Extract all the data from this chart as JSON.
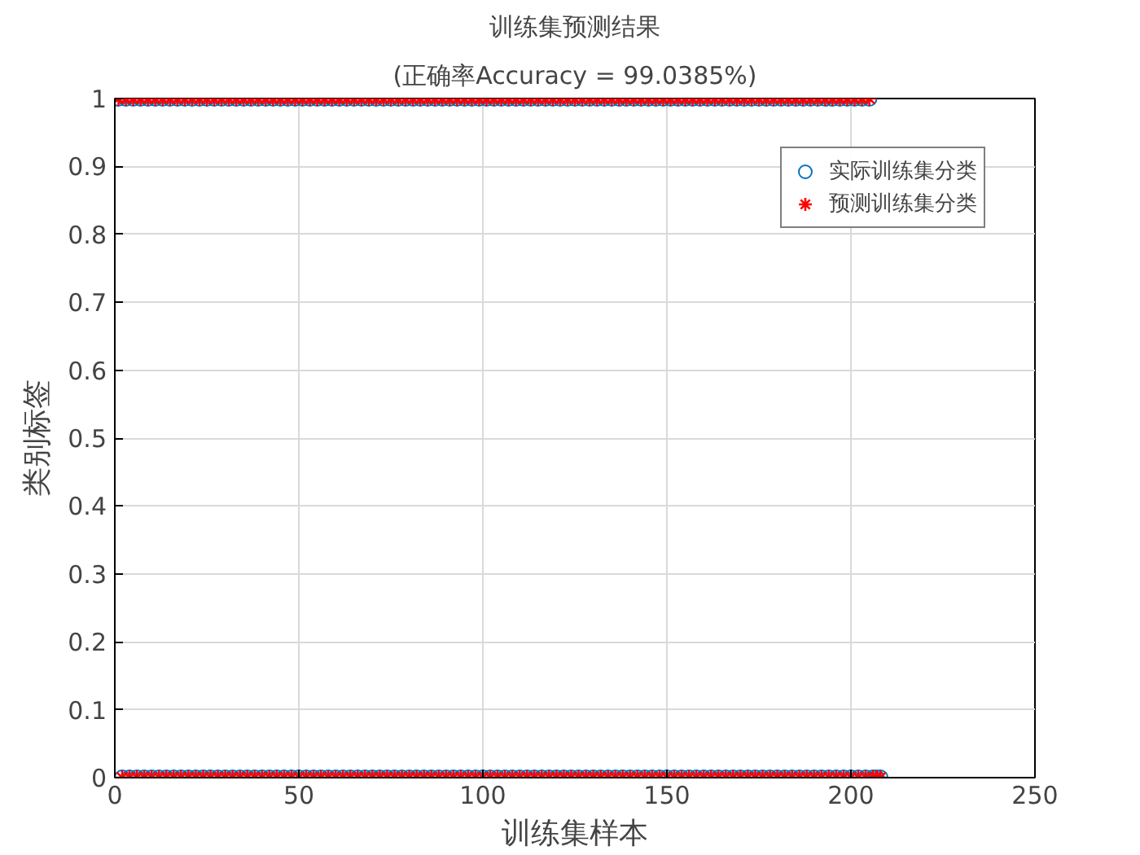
{
  "chart_data": {
    "type": "scatter",
    "title": "训练集预测结果",
    "subtitle": "(正确率Accuracy = 99.0385%)",
    "xlabel": "训练集样本",
    "ylabel": "类别标签",
    "x": [
      1,
      2,
      3,
      4,
      5,
      6,
      7,
      8,
      9,
      10,
      11,
      12,
      13,
      14,
      15,
      16,
      17,
      18,
      19,
      20,
      21,
      22,
      23,
      24,
      25,
      26,
      27,
      28,
      29,
      30,
      31,
      32,
      33,
      34,
      35,
      36,
      37,
      38,
      39,
      40,
      41,
      42,
      43,
      44,
      45,
      46,
      47,
      48,
      49,
      50,
      51,
      52,
      53,
      54,
      55,
      56,
      57,
      58,
      59,
      60,
      61,
      62,
      63,
      64,
      65,
      66,
      67,
      68,
      69,
      70,
      71,
      72,
      73,
      74,
      75,
      76,
      77,
      78,
      79,
      80,
      81,
      82,
      83,
      84,
      85,
      86,
      87,
      88,
      89,
      90,
      91,
      92,
      93,
      94,
      95,
      96,
      97,
      98,
      99,
      100,
      101,
      102,
      103,
      104,
      105,
      106,
      107,
      108,
      109,
      110,
      111,
      112,
      113,
      114,
      115,
      116,
      117,
      118,
      119,
      120,
      121,
      122,
      123,
      124,
      125,
      126,
      127,
      128,
      129,
      130,
      131,
      132,
      133,
      134,
      135,
      136,
      137,
      138,
      139,
      140,
      141,
      142,
      143,
      144,
      145,
      146,
      147,
      148,
      149,
      150,
      151,
      152,
      153,
      154,
      155,
      156,
      157,
      158,
      159,
      160,
      161,
      162,
      163,
      164,
      165,
      166,
      167,
      168,
      169,
      170,
      171,
      172,
      173,
      174,
      175,
      176,
      177,
      178,
      179,
      180,
      181,
      182,
      183,
      184,
      185,
      186,
      187,
      188,
      189,
      190,
      191,
      192,
      193,
      194,
      195,
      196,
      197,
      198,
      199,
      200,
      201,
      202,
      203,
      204,
      205,
      206,
      207,
      208
    ],
    "series": [
      {
        "name": "实际训练集分类",
        "color": "#0072bd",
        "marker": "circle",
        "values": [
          1,
          0,
          1,
          0,
          1,
          0,
          1,
          0,
          1,
          0,
          1,
          0,
          1,
          0,
          1,
          0,
          1,
          0,
          1,
          0,
          1,
          0,
          1,
          0,
          1,
          0,
          1,
          0,
          1,
          0,
          1,
          0,
          1,
          0,
          1,
          0,
          1,
          0,
          1,
          0,
          1,
          0,
          1,
          0,
          1,
          0,
          1,
          0,
          1,
          0,
          1,
          0,
          1,
          0,
          1,
          0,
          1,
          0,
          1,
          0,
          1,
          0,
          1,
          0,
          1,
          0,
          1,
          0,
          1,
          0,
          1,
          0,
          1,
          0,
          1,
          0,
          1,
          0,
          1,
          0,
          1,
          0,
          1,
          0,
          1,
          0,
          1,
          0,
          1,
          0,
          1,
          0,
          1,
          0,
          1,
          0,
          1,
          0,
          1,
          0,
          1,
          0,
          1,
          0,
          1,
          0,
          1,
          0,
          1,
          0,
          1,
          0,
          1,
          0,
          1,
          0,
          1,
          0,
          1,
          0,
          1,
          0,
          1,
          0,
          1,
          0,
          1,
          0,
          1,
          0,
          1,
          0,
          1,
          0,
          1,
          0,
          1,
          0,
          1,
          0,
          1,
          0,
          1,
          0,
          1,
          0,
          1,
          0,
          1,
          0,
          1,
          0,
          1,
          0,
          1,
          0,
          1,
          0,
          1,
          0,
          1,
          0,
          1,
          0,
          1,
          0,
          1,
          0,
          1,
          0,
          1,
          0,
          1,
          0,
          1,
          0,
          1,
          0,
          1,
          0,
          1,
          0,
          1,
          0,
          1,
          0,
          1,
          0,
          1,
          0,
          1,
          0,
          1,
          0,
          1,
          0,
          1,
          0,
          1,
          0,
          1,
          0,
          1,
          0,
          1,
          0,
          0,
          0
        ]
      },
      {
        "name": "预测训练集分类",
        "color": "#ff0000",
        "marker": "cross",
        "values": [
          1,
          0,
          1,
          0,
          1,
          0,
          1,
          0,
          1,
          0,
          1,
          0,
          1,
          0,
          1,
          0,
          1,
          0,
          1,
          0,
          1,
          0,
          1,
          0,
          1,
          0,
          1,
          0,
          1,
          0,
          1,
          0,
          1,
          0,
          1,
          0,
          1,
          0,
          1,
          0,
          1,
          0,
          1,
          0,
          1,
          0,
          1,
          0,
          1,
          0,
          1,
          0,
          1,
          0,
          1,
          0,
          1,
          0,
          1,
          0,
          1,
          0,
          1,
          0,
          1,
          0,
          1,
          0,
          1,
          0,
          1,
          0,
          1,
          0,
          1,
          0,
          1,
          0,
          1,
          0,
          1,
          0,
          1,
          0,
          1,
          0,
          1,
          0,
          1,
          0,
          1,
          0,
          1,
          0,
          1,
          0,
          1,
          0,
          1,
          0,
          1,
          0,
          1,
          0,
          1,
          0,
          1,
          0,
          1,
          0,
          1,
          0,
          1,
          0,
          1,
          0,
          1,
          0,
          1,
          0,
          1,
          0,
          1,
          0,
          1,
          0,
          1,
          0,
          1,
          0,
          1,
          0,
          1,
          0,
          1,
          0,
          1,
          0,
          1,
          0,
          1,
          0,
          1,
          0,
          1,
          0,
          1,
          0,
          1,
          0,
          1,
          0,
          1,
          0,
          1,
          0,
          1,
          0,
          1,
          0,
          1,
          0,
          1,
          0,
          1,
          0,
          1,
          0,
          1,
          0,
          1,
          0,
          1,
          0,
          1,
          0,
          1,
          0,
          1,
          0,
          1,
          0,
          1,
          0,
          1,
          0,
          1,
          0,
          1,
          0,
          1,
          0,
          1,
          0,
          1,
          0,
          1,
          0,
          1,
          0,
          1,
          0,
          1,
          0,
          1,
          0,
          0,
          0
        ]
      }
    ],
    "xlim": [
      0,
      250
    ],
    "xticks": [
      0,
      50,
      100,
      150,
      200,
      250
    ],
    "ylim": [
      0,
      1
    ],
    "yticks": [
      0,
      0.1,
      0.2,
      0.3,
      0.4,
      0.5,
      0.6,
      0.7,
      0.8,
      0.9,
      1
    ],
    "grid": true,
    "legend": "top right"
  }
}
